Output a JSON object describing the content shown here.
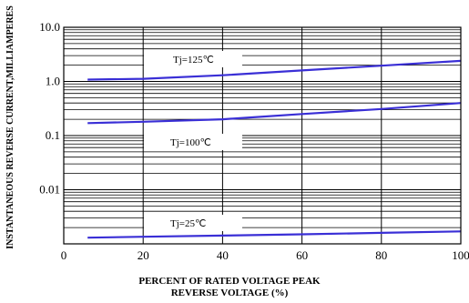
{
  "chart_data": {
    "type": "line",
    "title": "",
    "xlabel_lines": [
      "PERCENT OF RATED VOLTAGE PEAK",
      "REVERSE VOLTAGE (%)"
    ],
    "ylabel": "INSTANTANEOUS REVERSE CURRENT,MILLIAMPERES",
    "x_range": [
      0,
      100
    ],
    "y_range": [
      0.001,
      10
    ],
    "y_scale": "log",
    "x_ticks": [
      "0",
      "20",
      "40",
      "60",
      "80",
      "100"
    ],
    "y_ticks": [
      "10.0",
      "1.0",
      "0.1",
      "0.01"
    ],
    "grid": true,
    "line_color": "#3a2fd6",
    "series": [
      {
        "name": "Tj=125℃",
        "x": [
          6,
          20,
          40,
          60,
          80,
          100
        ],
        "y": [
          1.08,
          1.12,
          1.3,
          1.6,
          1.95,
          2.4
        ]
      },
      {
        "name": "Tj=100℃",
        "x": [
          6,
          20,
          40,
          60,
          80,
          100
        ],
        "y": [
          0.17,
          0.18,
          0.2,
          0.25,
          0.31,
          0.4
        ]
      },
      {
        "name": "Tj=25℃",
        "x": [
          6,
          20,
          40,
          60,
          80,
          100
        ],
        "y": [
          0.0013,
          0.00135,
          0.00142,
          0.0015,
          0.0016,
          0.0017
        ]
      }
    ]
  }
}
